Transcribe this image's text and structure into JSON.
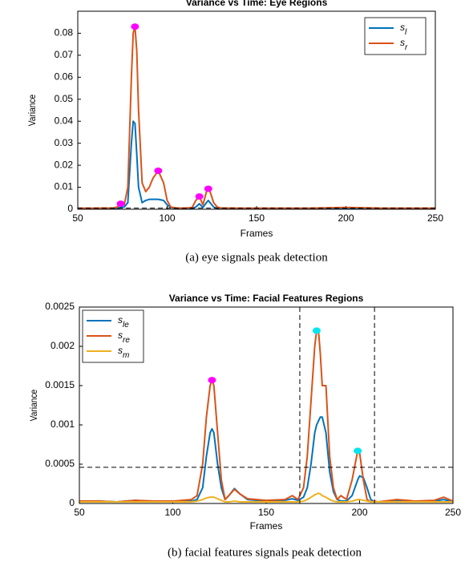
{
  "chart_data": [
    {
      "type": "line",
      "title": "Variance vs Time: Eye Regions",
      "xlabel": "Frames",
      "ylabel": "Variance",
      "caption": "(a) eye signals peak detection",
      "x": [
        50,
        60,
        70,
        72,
        74,
        76,
        78,
        80,
        81,
        82,
        83,
        84,
        86,
        88,
        90,
        92,
        95,
        98,
        100,
        102,
        105,
        110,
        114,
        116,
        118,
        120,
        122,
        123,
        124,
        126,
        128,
        130,
        140,
        150,
        160,
        170,
        180,
        200,
        220,
        250
      ],
      "series": [
        {
          "name": "s",
          "subscript": "l",
          "color": "#0072bd",
          "values": [
            0.0003,
            0.0003,
            0.0003,
            0.0004,
            0.0008,
            0.001,
            0.003,
            0.03,
            0.04,
            0.039,
            0.025,
            0.01,
            0.003,
            0.004,
            0.0045,
            0.0045,
            0.0045,
            0.004,
            0.002,
            0.0008,
            0.0004,
            0.0003,
            0.0004,
            0.001,
            0.0025,
            0.0008,
            0.003,
            0.004,
            0.003,
            0.001,
            0.0004,
            0.0003,
            0.0003,
            0.0003,
            0.0003,
            0.0003,
            0.0003,
            0.0005,
            0.0003,
            0.0003
          ]
        },
        {
          "name": "s",
          "subscript": "r",
          "color": "#d95319",
          "values": [
            0.0005,
            0.0005,
            0.0006,
            0.001,
            0.0025,
            0.002,
            0.01,
            0.06,
            0.08,
            0.083,
            0.072,
            0.045,
            0.012,
            0.008,
            0.01,
            0.014,
            0.0175,
            0.012,
            0.004,
            0.001,
            0.0006,
            0.0005,
            0.0008,
            0.004,
            0.0058,
            0.002,
            0.008,
            0.0093,
            0.008,
            0.003,
            0.001,
            0.0006,
            0.0005,
            0.0005,
            0.0005,
            0.0005,
            0.0005,
            0.0008,
            0.0005,
            0.0005
          ]
        }
      ],
      "markers": [
        {
          "color": "#ff00ff",
          "x": [
            74,
            82,
            95,
            118,
            123
          ],
          "y": [
            0.0025,
            0.083,
            0.0175,
            0.0058,
            0.0093
          ]
        }
      ],
      "threshold": 0.0005,
      "vlines": [],
      "xlim": [
        50,
        250
      ],
      "xticks": [
        50,
        100,
        150,
        200,
        250
      ],
      "ylim": [
        0,
        0.09
      ],
      "yticks": [
        0,
        0.01,
        0.02,
        0.03,
        0.04,
        0.05,
        0.06,
        0.07,
        0.08
      ],
      "legend": "upper right"
    },
    {
      "type": "line",
      "title": "Variance vs Time: Facial Features Regions",
      "xlabel": "Frames",
      "ylabel": "Variance",
      "caption": "(b) facial features signals peak detection",
      "x": [
        50,
        60,
        70,
        80,
        90,
        100,
        110,
        113,
        116,
        118,
        120,
        121,
        122,
        124,
        126,
        128,
        130,
        133,
        136,
        140,
        150,
        160,
        164,
        167,
        170,
        172,
        174,
        176,
        177,
        178,
        179,
        180,
        182,
        184,
        186,
        188,
        190,
        193,
        196,
        199,
        200,
        202,
        204,
        206,
        208,
        210,
        220,
        230,
        240,
        245,
        250
      ],
      "series": [
        {
          "name": "s",
          "subscript": "le",
          "color": "#0072bd",
          "values": [
            2e-05,
            3e-05,
            2e-05,
            4e-05,
            2e-05,
            3e-05,
            3e-05,
            5e-05,
            0.0002,
            0.0006,
            0.0009,
            0.00095,
            0.0009,
            0.0005,
            0.0002,
            5e-05,
            0.0001,
            0.00019,
            0.00012,
            5e-05,
            3e-05,
            4e-05,
            6e-05,
            4e-05,
            8e-05,
            0.0002,
            0.0005,
            0.0009,
            0.001,
            0.00105,
            0.0011,
            0.0011,
            0.0009,
            0.0004,
            0.00015,
            5e-05,
            3e-05,
            3e-05,
            0.0001,
            0.0003,
            0.00035,
            0.00033,
            0.0002,
            5e-05,
            2e-05,
            2e-05,
            4e-05,
            2e-05,
            3e-05,
            5e-05,
            2e-05
          ]
        },
        {
          "name": "s",
          "subscript": "re",
          "color": "#d95319",
          "values": [
            3e-05,
            3e-05,
            2e-05,
            4e-05,
            3e-05,
            3e-05,
            5e-05,
            0.0001,
            0.0005,
            0.0011,
            0.0015,
            0.00157,
            0.0015,
            0.0009,
            0.0003,
            5e-05,
            0.0001,
            0.00018,
            0.00012,
            6e-05,
            4e-05,
            5e-05,
            0.0001,
            5e-05,
            0.0002,
            0.0006,
            0.0013,
            0.002,
            0.0022,
            0.0022,
            0.0019,
            0.0015,
            0.0015,
            0.0006,
            0.0002,
            5e-05,
            0.0001,
            5e-05,
            0.0003,
            0.00067,
            0.00065,
            0.0003,
            5e-05,
            2e-05,
            3e-05,
            2e-05,
            5e-05,
            3e-05,
            4e-05,
            8e-05,
            3e-05
          ]
        },
        {
          "name": "s",
          "subscript": "m",
          "color": "#edb120",
          "values": [
            2e-05,
            2e-05,
            2e-05,
            2e-05,
            2e-05,
            2e-05,
            2e-05,
            3e-05,
            5e-05,
            7e-05,
            8e-05,
            8e-05,
            8e-05,
            6e-05,
            4e-05,
            2e-05,
            2e-05,
            3e-05,
            2e-05,
            2e-05,
            2e-05,
            2e-05,
            2e-05,
            2e-05,
            3e-05,
            5e-05,
            8e-05,
            0.00011,
            0.00012,
            0.00013,
            0.00012,
            0.0001,
            8e-05,
            5e-05,
            3e-05,
            2e-05,
            2e-05,
            2e-05,
            3e-05,
            5e-05,
            5e-05,
            4e-05,
            3e-05,
            2e-05,
            2e-05,
            2e-05,
            2e-05,
            2e-05,
            2e-05,
            2e-05,
            2e-05
          ]
        }
      ],
      "markers": [
        {
          "color": "#ff00ff",
          "x": [
            121
          ],
          "y": [
            0.00157
          ]
        },
        {
          "color": "#00e5ee",
          "x": [
            177,
            199
          ],
          "y": [
            0.0022,
            0.00067
          ]
        }
      ],
      "threshold": 0.00046,
      "vlines": [
        168,
        208
      ],
      "xlim": [
        50,
        250
      ],
      "xticks": [
        50,
        100,
        150,
        200,
        250
      ],
      "ylim": [
        0,
        0.0025
      ],
      "yticks": [
        0,
        0.0005,
        0.001,
        0.0015,
        0.002,
        0.0025
      ],
      "legend": "upper left"
    }
  ]
}
